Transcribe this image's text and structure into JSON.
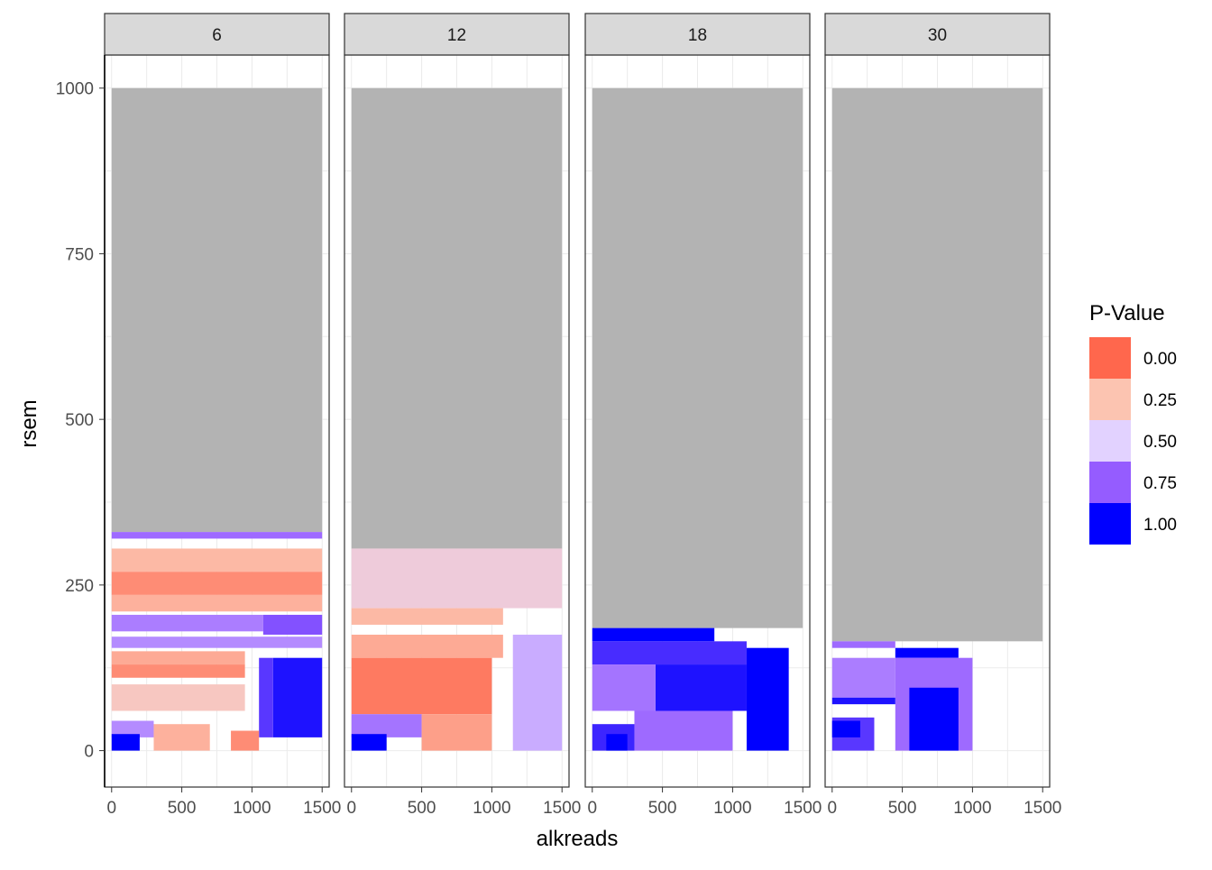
{
  "chart_data": {
    "type": "heatmap",
    "facet_labels": [
      "6",
      "12",
      "18",
      "30"
    ],
    "xlabel": "alkreads",
    "ylabel": "rsem",
    "x_ticks": [
      "0",
      "500",
      "1000",
      "1500"
    ],
    "y_ticks": [
      "0",
      "250",
      "500",
      "750",
      "1000"
    ],
    "xlim": [
      -50,
      1550
    ],
    "ylim": [
      -55,
      1050
    ],
    "legend": {
      "title": "P-Value",
      "position": "right",
      "entries": [
        {
          "label": "0.00",
          "color": "#ff674d"
        },
        {
          "label": "0.25",
          "color": "#fcc4b1"
        },
        {
          "label": "0.50",
          "color": "#e2d2ff"
        },
        {
          "label": "0.75",
          "color": "#955cff"
        },
        {
          "label": "1.00",
          "color": "#0000ff"
        }
      ]
    },
    "na_color": "#b3b3b3",
    "panels": [
      {
        "facet": "6",
        "tiles": [
          {
            "x0": 0,
            "x1": 1500,
            "y0": 330,
            "y1": 1000,
            "p": null
          },
          {
            "x0": 0,
            "x1": 1500,
            "y0": 320,
            "y1": 330,
            "p": 0.72
          },
          {
            "x0": 0,
            "x1": 1500,
            "y0": 270,
            "y1": 305,
            "p": 0.22
          },
          {
            "x0": 0,
            "x1": 1500,
            "y0": 235,
            "y1": 270,
            "p": 0.1
          },
          {
            "x0": 0,
            "x1": 1500,
            "y0": 210,
            "y1": 235,
            "p": 0.2
          },
          {
            "x0": 0,
            "x1": 1080,
            "y0": 180,
            "y1": 205,
            "p": 0.68
          },
          {
            "x0": 1080,
            "x1": 1500,
            "y0": 175,
            "y1": 205,
            "p": 0.78
          },
          {
            "x0": 0,
            "x1": 1500,
            "y0": 155,
            "y1": 172,
            "p": 0.65
          },
          {
            "x0": 0,
            "x1": 950,
            "y0": 130,
            "y1": 150,
            "p": 0.18
          },
          {
            "x0": 0,
            "x1": 950,
            "y0": 110,
            "y1": 130,
            "p": 0.1
          },
          {
            "x0": 1150,
            "x1": 1500,
            "y0": 20,
            "y1": 140,
            "p": 0.95
          },
          {
            "x0": 1050,
            "x1": 1150,
            "y0": 20,
            "y1": 140,
            "p": 0.85
          },
          {
            "x0": 0,
            "x1": 950,
            "y0": 60,
            "y1": 100,
            "p": 0.3
          },
          {
            "x0": 0,
            "x1": 300,
            "y0": 20,
            "y1": 45,
            "p": 0.65
          },
          {
            "x0": 300,
            "x1": 700,
            "y0": 0,
            "y1": 40,
            "p": 0.2
          },
          {
            "x0": 850,
            "x1": 1050,
            "y0": 0,
            "y1": 30,
            "p": 0.1
          },
          {
            "x0": 0,
            "x1": 200,
            "y0": 0,
            "y1": 25,
            "p": 1.0
          }
        ]
      },
      {
        "facet": "12",
        "tiles": [
          {
            "x0": 0,
            "x1": 1500,
            "y0": 305,
            "y1": 1000,
            "p": null
          },
          {
            "x0": 0,
            "x1": 1500,
            "y0": 215,
            "y1": 305,
            "p": 0.38
          },
          {
            "x0": 0,
            "x1": 1080,
            "y0": 190,
            "y1": 215,
            "p": 0.22
          },
          {
            "x0": 0,
            "x1": 1080,
            "y0": 140,
            "y1": 175,
            "p": 0.18
          },
          {
            "x0": 1150,
            "x1": 1500,
            "y0": 0,
            "y1": 175,
            "p": 0.58
          },
          {
            "x0": 0,
            "x1": 1000,
            "y0": 55,
            "y1": 140,
            "p": 0.05
          },
          {
            "x0": 0,
            "x1": 500,
            "y0": 20,
            "y1": 55,
            "p": 0.7
          },
          {
            "x0": 500,
            "x1": 1000,
            "y0": 0,
            "y1": 55,
            "p": 0.15
          },
          {
            "x0": 0,
            "x1": 250,
            "y0": 0,
            "y1": 25,
            "p": 1.0
          }
        ]
      },
      {
        "facet": "18",
        "tiles": [
          {
            "x0": 0,
            "x1": 1500,
            "y0": 185,
            "y1": 1000,
            "p": null
          },
          {
            "x0": 0,
            "x1": 870,
            "y0": 165,
            "y1": 185,
            "p": 1.0
          },
          {
            "x0": 0,
            "x1": 1100,
            "y0": 130,
            "y1": 165,
            "p": 0.88
          },
          {
            "x0": 1100,
            "x1": 1400,
            "y0": 0,
            "y1": 155,
            "p": 1.0
          },
          {
            "x0": 450,
            "x1": 1100,
            "y0": 60,
            "y1": 130,
            "p": 0.95
          },
          {
            "x0": 0,
            "x1": 450,
            "y0": 60,
            "y1": 130,
            "p": 0.7
          },
          {
            "x0": 300,
            "x1": 1000,
            "y0": 0,
            "y1": 60,
            "p": 0.72
          },
          {
            "x0": 0,
            "x1": 300,
            "y0": 0,
            "y1": 40,
            "p": 0.9
          },
          {
            "x0": 100,
            "x1": 250,
            "y0": 0,
            "y1": 25,
            "p": 1.0
          }
        ]
      },
      {
        "facet": "30",
        "tiles": [
          {
            "x0": 0,
            "x1": 1500,
            "y0": 165,
            "y1": 1000,
            "p": null
          },
          {
            "x0": 0,
            "x1": 450,
            "y0": 155,
            "y1": 165,
            "p": 0.72
          },
          {
            "x0": 450,
            "x1": 900,
            "y0": 140,
            "y1": 155,
            "p": 1.0
          },
          {
            "x0": 0,
            "x1": 450,
            "y0": 80,
            "y1": 140,
            "p": 0.68
          },
          {
            "x0": 450,
            "x1": 1000,
            "y0": 0,
            "y1": 140,
            "p": 0.72
          },
          {
            "x0": 550,
            "x1": 900,
            "y0": 0,
            "y1": 95,
            "p": 1.0
          },
          {
            "x0": 0,
            "x1": 450,
            "y0": 70,
            "y1": 80,
            "p": 0.95
          },
          {
            "x0": 0,
            "x1": 300,
            "y0": 0,
            "y1": 50,
            "p": 0.85
          },
          {
            "x0": 0,
            "x1": 200,
            "y0": 20,
            "y1": 45,
            "p": 1.0
          }
        ]
      }
    ]
  }
}
